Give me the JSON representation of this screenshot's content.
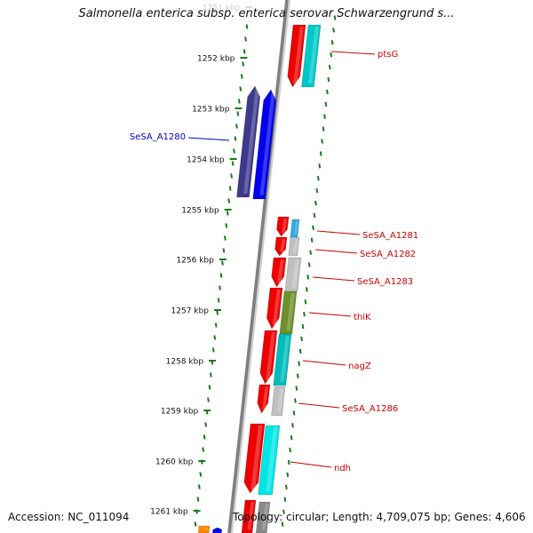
{
  "title": "Salmonella enterica subsp. enterica serovar Schwarzengrund s...",
  "footer": {
    "accession": "Accession: NC_011094",
    "topology": "Topology: circular; Length: 4,709,075 bp; Genes: 4,606"
  },
  "colors": {
    "backbone": "#7f7f7f",
    "tick": "#1a7a1a",
    "tick_label": "#111111",
    "forward_label": "#cc0000",
    "reverse_label": "#0000cc",
    "faded_label": "#cccccc"
  },
  "ruler": {
    "ticks": [
      {
        "label": "1251 kbp",
        "faded": true
      },
      {
        "label": "1252 kbp"
      },
      {
        "label": "1253 kbp"
      },
      {
        "label": "1254 kbp"
      },
      {
        "label": "1255 kbp"
      },
      {
        "label": "1256 kbp"
      },
      {
        "label": "1257 kbp"
      },
      {
        "label": "1258 kbp"
      },
      {
        "label": "1259 kbp"
      },
      {
        "label": "1260 kbp"
      },
      {
        "label": "1261 kbp"
      }
    ]
  },
  "gene_labels": [
    {
      "name": "ptsG",
      "strand": "forward"
    },
    {
      "name": "SeSA_A1280",
      "strand": "reverse"
    },
    {
      "name": "SeSA_A1281",
      "strand": "forward"
    },
    {
      "name": "SeSA_A1282",
      "strand": "forward"
    },
    {
      "name": "SeSA_A1283",
      "strand": "forward"
    },
    {
      "name": "thiK",
      "strand": "forward"
    },
    {
      "name": "nagZ",
      "strand": "forward"
    },
    {
      "name": "SeSA_A1286",
      "strand": "forward"
    },
    {
      "name": "ndh",
      "strand": "forward"
    }
  ]
}
